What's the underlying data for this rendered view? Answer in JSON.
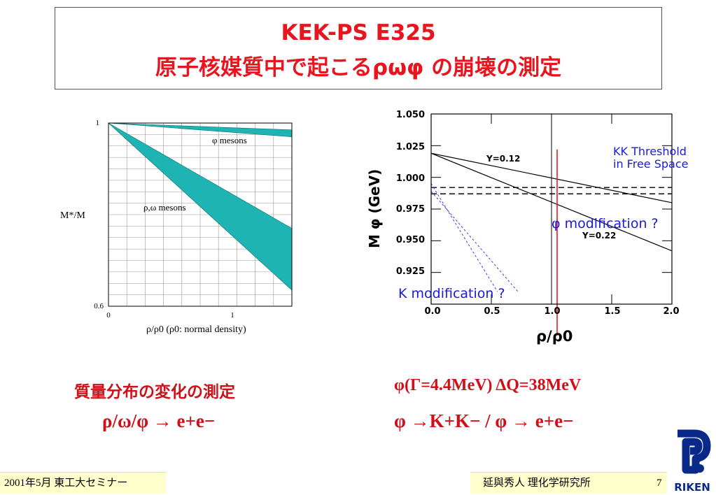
{
  "slide": {
    "title_line1": "KEK-PS  E325",
    "title_line2": "原子核媒質中で起こるρωφ の崩壊の測定"
  },
  "left_chart": {
    "ylabel": "M*/M",
    "xlabel": "ρ/ρ0   (ρ0: normal density)",
    "y_top_tick": "1",
    "y_bottom_tick": "0.6",
    "x_ticks": [
      "0",
      "1"
    ],
    "band_labels": [
      "φ mesons",
      "ρ,ω  mesons"
    ]
  },
  "right_chart": {
    "ylabel": "M φ  (GeV)",
    "xlabel": "ρ/ρ0",
    "y_ticks": [
      "1.050",
      "1.025",
      "1.000",
      "0.975",
      "0.950",
      "0.925"
    ],
    "x_ticks": [
      "0.0",
      "0.5",
      "1.0",
      "1.5",
      "2.0"
    ],
    "line_labels": [
      "Y=0.12",
      "Y=0.22"
    ],
    "threshold_note": [
      "KK Threshold",
      "in Free Space"
    ],
    "phi_note": "φ modification ?",
    "k_note": "K modification ?"
  },
  "chart_data": [
    {
      "type": "area",
      "xlabel": "ρ/ρ0   (ρ0: normal density)",
      "ylabel": "M*/M",
      "ylim": [
        0.6,
        1.0
      ],
      "xlim": [
        0,
        2.4
      ],
      "series": [
        {
          "name": "φ mesons",
          "x": [
            0,
            2.4
          ],
          "upper": [
            1.0,
            0.985
          ],
          "lower": [
            1.0,
            0.97
          ]
        },
        {
          "name": "ρ,ω  mesons",
          "x": [
            0,
            2.4
          ],
          "upper": [
            1.0,
            0.77
          ],
          "lower": [
            1.0,
            0.635
          ]
        }
      ]
    },
    {
      "type": "line",
      "xlabel": "ρ/ρ0",
      "ylabel": "M φ  (GeV)",
      "xlim": [
        0.0,
        2.0
      ],
      "ylim": [
        0.9,
        1.05
      ],
      "series": [
        {
          "name": "Y=0.12",
          "x": [
            0.0,
            2.0
          ],
          "y": [
            1.019,
            0.98
          ]
        },
        {
          "name": "Y=0.22",
          "x": [
            0.0,
            2.0
          ],
          "y": [
            1.019,
            0.942
          ]
        },
        {
          "x": [
            0.0,
            2.0
          ],
          "y": [
            0.992,
            0.992
          ]
        },
        {
          "x": [
            0.0,
            2.0
          ],
          "y": [
            0.987,
            0.987
          ]
        },
        {
          "x": [
            0.0,
            0.55
          ],
          "y": [
            0.995,
            0.91
          ]
        },
        {
          "x": [
            0.0,
            0.72
          ],
          "y": [
            0.989,
            0.91
          ]
        }
      ]
    }
  ],
  "lower": {
    "left_heading": "質量分布の変化の測定",
    "left_formula": "ρ/ω/φ →  e+e−",
    "right_heading": "φ(Γ=4.4MeV)   ΔQ=38MeV",
    "right_formula": "φ →K+K− / φ →  e+e−"
  },
  "footer": {
    "left": "2001年5月   東工大セミナー",
    "right_name": "延與秀人   理化学研究所",
    "page_number": "7",
    "logo_text": "RIKEN"
  },
  "colors": {
    "title": "#e8141e",
    "band_fill": "#1fb4b4",
    "blue_note": "#1a1adf",
    "red_line": "#e02020"
  }
}
